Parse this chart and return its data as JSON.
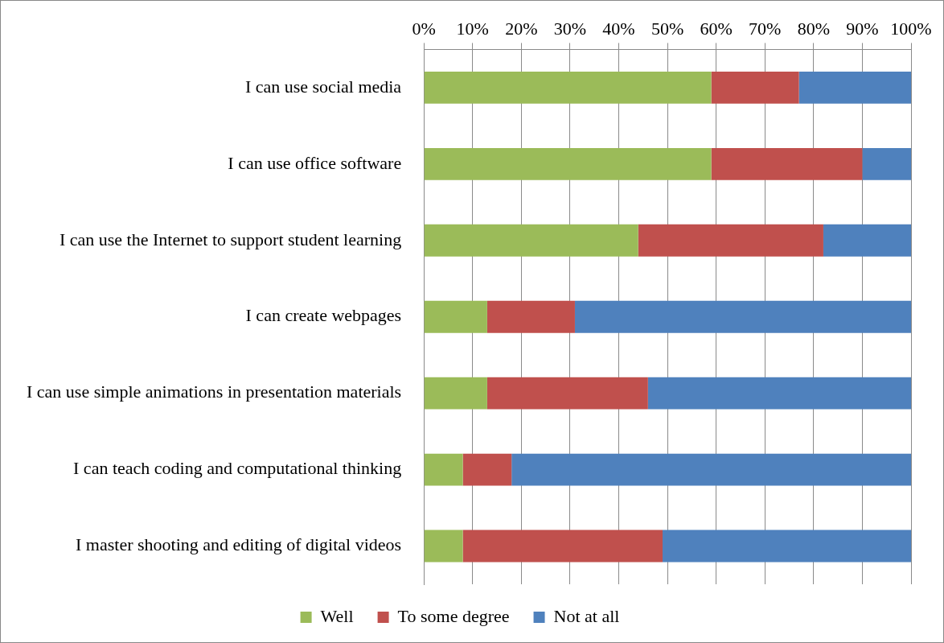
{
  "chart_data": {
    "type": "bar",
    "orientation": "horizontal",
    "stacked": true,
    "categories": [
      "I can use social media",
      "I can use office software",
      "I can use the Internet to support student learning",
      "I can create webpages",
      "I can use simple animations in presentation materials",
      "I can teach coding and computational thinking",
      "I master shooting and editing of digital videos"
    ],
    "series": [
      {
        "name": "Well",
        "color": "#9bbb59",
        "values": [
          59,
          59,
          44,
          13,
          13,
          8,
          8
        ]
      },
      {
        "name": "To some degree",
        "color": "#c0504d",
        "values": [
          18,
          31,
          38,
          18,
          33,
          10,
          41
        ]
      },
      {
        "name": "Not at all",
        "color": "#4f81bd",
        "values": [
          23,
          10,
          18,
          69,
          54,
          82,
          51
        ]
      }
    ],
    "xlim": [
      0,
      100
    ],
    "xticks": [
      {
        "value": 0,
        "label": "0%"
      },
      {
        "value": 10,
        "label": "10%"
      },
      {
        "value": 20,
        "label": "20%"
      },
      {
        "value": 30,
        "label": "30%"
      },
      {
        "value": 40,
        "label": "40%"
      },
      {
        "value": 50,
        "label": "50%"
      },
      {
        "value": 60,
        "label": "60%"
      },
      {
        "value": 70,
        "label": "70%"
      },
      {
        "value": 80,
        "label": "80%"
      },
      {
        "value": 90,
        "label": "90%"
      },
      {
        "value": 100,
        "label": "100%"
      }
    ],
    "grid": "x",
    "legend": "bottom"
  }
}
